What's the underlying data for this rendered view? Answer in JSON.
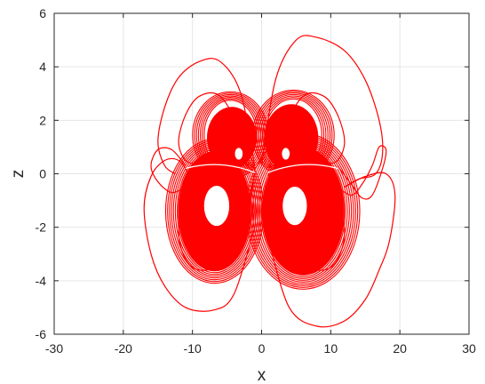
{
  "chart_data": {
    "type": "line",
    "title": "",
    "xlabel": "x",
    "ylabel": "z",
    "xlim": [
      -30,
      30
    ],
    "ylim": [
      -6,
      6
    ],
    "xticks": [
      -30,
      -20,
      -10,
      0,
      10,
      20,
      30
    ],
    "yticks": [
      -6,
      -4,
      -2,
      0,
      2,
      4,
      6
    ],
    "xtick_labels": [
      "-30",
      "-20",
      "-10",
      "0",
      "10",
      "20",
      "30"
    ],
    "ytick_labels": [
      "-6",
      "-4",
      "-2",
      "0",
      "2",
      "4",
      "6"
    ],
    "grid": true,
    "line_color": "#ff0000",
    "series": [
      {
        "structure": "upper-left lobes",
        "x": [
          -1,
          -3,
          -6,
          -9,
          -11,
          -12,
          -11,
          -9,
          -6,
          -3,
          -1
        ],
        "y": [
          0.2,
          1.6,
          2.9,
          2.9,
          2.2,
          1.2,
          0.5,
          0.4,
          0.6,
          0.5,
          0.2
        ]
      },
      {
        "structure": "upper-right lobes",
        "x": [
          1,
          3,
          6,
          9,
          11,
          12,
          11,
          9,
          6,
          3,
          1
        ],
        "y": [
          0.2,
          1.6,
          2.9,
          2.9,
          2.2,
          1.2,
          0.5,
          0.4,
          0.6,
          0.5,
          0.2
        ]
      },
      {
        "structure": "lower-left lobes",
        "x": [
          -1,
          -3,
          -6,
          -9,
          -11,
          -12,
          -11,
          -9,
          -6,
          -3,
          -1
        ],
        "y": [
          0,
          0.5,
          0.6,
          0.2,
          -1,
          -2.2,
          -3.2,
          -3.6,
          -3.4,
          -2.5,
          0
        ]
      },
      {
        "structure": "lower-right lobes",
        "x": [
          1,
          3,
          6,
          9,
          11,
          12,
          11,
          9,
          6,
          3,
          1
        ],
        "y": [
          0,
          0.5,
          0.6,
          0.2,
          -1,
          -2.2,
          -3.2,
          -3.6,
          -3.4,
          -2.5,
          0
        ]
      },
      {
        "structure": "outer upper-left loop",
        "x": [
          -1,
          -3,
          -6,
          -9,
          -12,
          -14,
          -15,
          -14,
          -12.5
        ],
        "y": [
          0.3,
          3,
          4.2,
          4.2,
          3.6,
          2.5,
          1.2,
          0.3,
          0
        ]
      },
      {
        "structure": "outer upper-right loop",
        "x": [
          0,
          2,
          5,
          8,
          12,
          15,
          17,
          17.5,
          16.5,
          14,
          12
        ],
        "y": [
          0.3,
          3.5,
          5,
          5.1,
          4.6,
          3.5,
          2,
          0.8,
          0,
          -0.2,
          -0.5
        ]
      },
      {
        "structure": "outer lower-left loop",
        "x": [
          -1,
          -4,
          -7,
          -11,
          -14,
          -16,
          -17,
          -16,
          -14,
          -12,
          -10.5
        ],
        "y": [
          -2,
          -4.5,
          -5.1,
          -5,
          -4.2,
          -3,
          -1.3,
          -0.1,
          0.5,
          0.5,
          0
        ]
      },
      {
        "structure": "outer lower-right loop",
        "x": [
          1,
          4,
          8,
          12,
          15,
          17,
          18.5,
          19.3,
          18,
          15,
          12
        ],
        "y": [
          -2.5,
          -5,
          -5.7,
          -5.5,
          -4.7,
          -3.6,
          -2.5,
          -0.8,
          0,
          -0.1,
          -0.5
        ]
      },
      {
        "structure": "left small side loop",
        "x": [
          -11,
          -13,
          -15,
          -16,
          -15,
          -13,
          -11
        ],
        "y": [
          -0.5,
          -0.7,
          -0.3,
          0.3,
          0.9,
          0.9,
          0.3
        ]
      },
      {
        "structure": "right small side loops",
        "x": [
          11,
          13,
          14.5,
          16,
          17,
          18,
          17.5,
          16,
          14.5,
          13,
          11
        ],
        "y": [
          -0.5,
          -0.8,
          -0.4,
          0.3,
          1,
          0.9,
          0.2,
          -0.8,
          -0.9,
          -0.4,
          0.3
        ]
      }
    ],
    "holes": [
      {
        "location": "left lower wing",
        "x": -6.5,
        "y": -1.2
      },
      {
        "location": "right lower wing",
        "x": 4.8,
        "y": -1.2
      },
      {
        "location": "left upper wing",
        "x": -3.3,
        "y": 0.75
      },
      {
        "location": "right upper wing",
        "x": 3.5,
        "y": 0.75
      }
    ]
  }
}
